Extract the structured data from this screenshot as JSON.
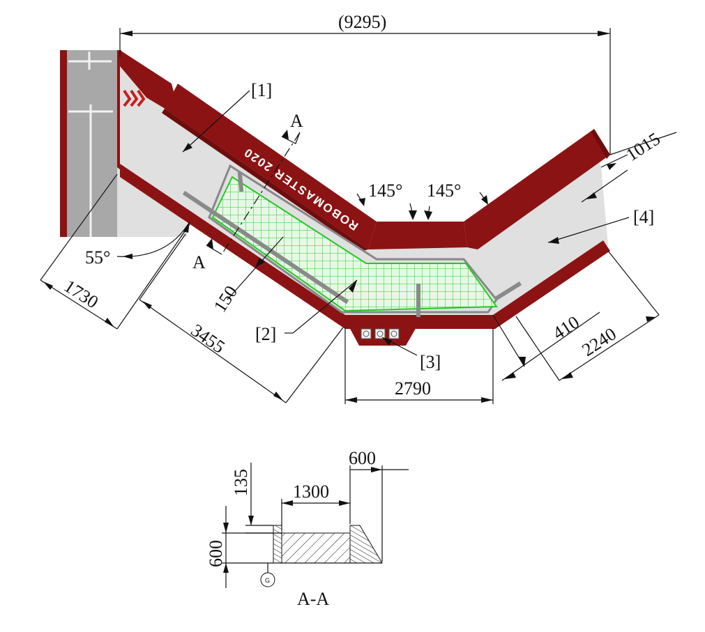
{
  "labels": {
    "overall_width": "(9295)",
    "section_letter_top": "A",
    "section_letter_bottom": "A",
    "callout_1": "[1]",
    "callout_2": "[2]",
    "callout_3": "[3]",
    "callout_4": "[4]",
    "brand_text": "ROBOMASTER 2020",
    "angle_left": "145°",
    "angle_right": "145°",
    "angle_55": "55°",
    "dim_1015": "1015",
    "dim_1730": "1730",
    "dim_150": "150",
    "dim_3455": "3455",
    "dim_2790": "2790",
    "dim_410": "410",
    "dim_2240": "2240",
    "sec_600_top": "600",
    "sec_1300": "1300",
    "sec_135": "135",
    "sec_600_left": "600",
    "sec_g": "G",
    "section_title": "A-A"
  },
  "colors": {
    "wall_red": "#8c1313",
    "floor_grey": "#e0e0e0",
    "pit_green": "#22cc22",
    "road_grey": "#a8a8a8"
  }
}
